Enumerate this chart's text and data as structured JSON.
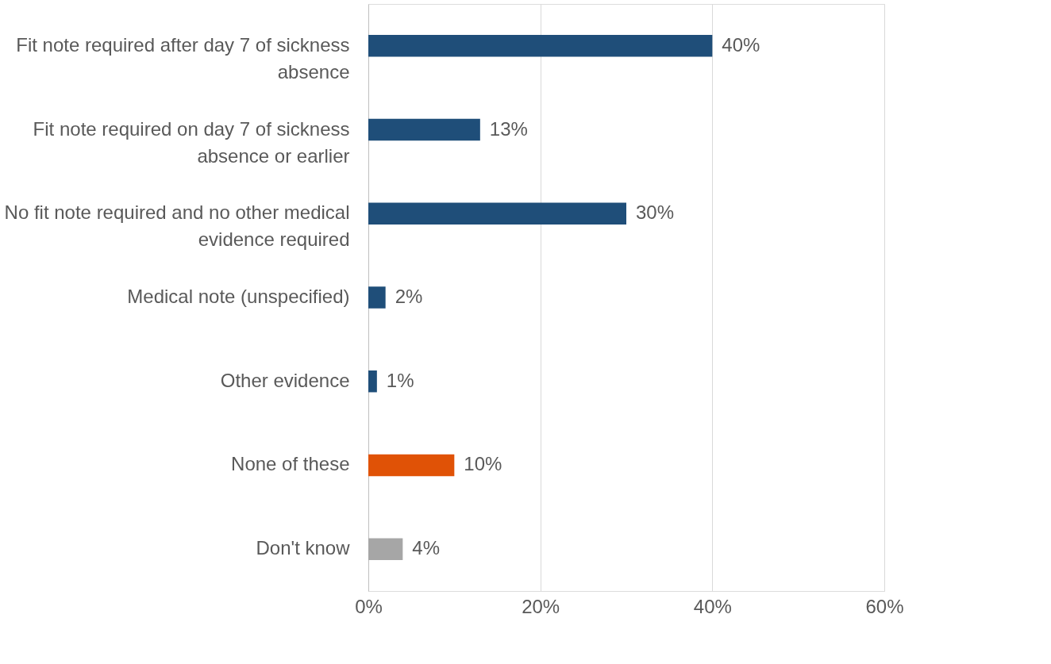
{
  "chart_data": {
    "type": "bar",
    "orientation": "horizontal",
    "categories": [
      "Fit note required after day 7 of sickness absence",
      "Fit note required on day 7 of sickness absence or earlier",
      "No fit note required and no other medical evidence required",
      "Medical note (unspecified)",
      "Other evidence",
      "None of these",
      "Don't know"
    ],
    "values": [
      40,
      13,
      30,
      2,
      1,
      10,
      4
    ],
    "colors": [
      "#1f4e79",
      "#1f4e79",
      "#1f4e79",
      "#1f4e79",
      "#1f4e79",
      "#e05206",
      "#a6a6a6"
    ],
    "value_labels": [
      "40%",
      "13%",
      "30%",
      "2%",
      "1%",
      "10%",
      "4%"
    ],
    "xlim": [
      0,
      60
    ],
    "xticks": [
      {
        "value": 0,
        "label": "0%"
      },
      {
        "value": 20,
        "label": "20%"
      },
      {
        "value": 40,
        "label": "40%"
      },
      {
        "value": 60,
        "label": "60%"
      }
    ],
    "grid": "x"
  }
}
